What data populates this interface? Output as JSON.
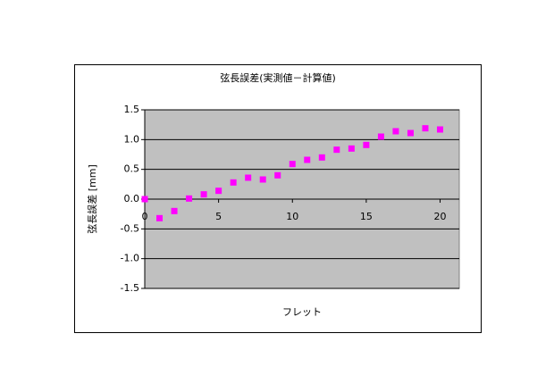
{
  "chart_data": {
    "type": "scatter",
    "title": "弦長誤差(実測値－計算値)",
    "x_label": "フレット",
    "y_label": "弦長誤差 [mm]",
    "series": [
      {
        "color": "#ff00ff",
        "x": [
          0,
          1,
          2,
          3,
          4,
          5,
          6,
          7,
          8,
          9,
          10,
          11,
          12,
          13,
          14,
          15,
          16,
          17,
          18,
          19,
          20
        ],
        "values": [
          0.0,
          -0.32,
          -0.2,
          0.01,
          0.08,
          0.14,
          0.28,
          0.36,
          0.33,
          0.4,
          0.59,
          0.66,
          0.7,
          0.83,
          0.85,
          0.91,
          1.05,
          1.14,
          1.11,
          1.19,
          1.17
        ]
      }
    ],
    "xlim": [
      0,
      21.3
    ],
    "xticks": [
      0,
      5,
      10,
      15,
      20
    ],
    "ylim": [
      -1.5,
      1.5
    ],
    "yticks": [
      {
        "value": -1.5,
        "label": "-1.5"
      },
      {
        "value": -1.0,
        "label": "-1.0"
      },
      {
        "value": -0.5,
        "label": "-0.5"
      },
      {
        "value": 0,
        "label": "0.0"
      },
      {
        "value": 0.5,
        "label": "0.5"
      },
      {
        "value": 1.0,
        "label": "1.0"
      },
      {
        "value": 1.5,
        "label": "1.5"
      }
    ],
    "grid": true,
    "plot_background": "#c0c0c0"
  }
}
